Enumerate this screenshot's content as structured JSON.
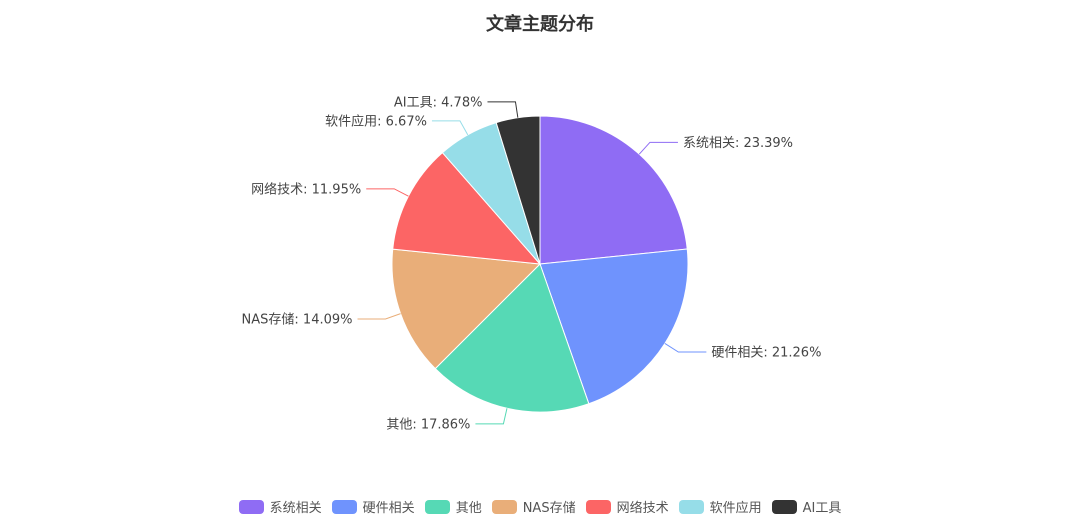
{
  "chart_data": {
    "type": "pie",
    "title": "文章主题分布",
    "categories": [
      "系统相关",
      "硬件相关",
      "其他",
      "NAS存储",
      "网络技术",
      "软件应用",
      "AI工具"
    ],
    "values": [
      23.39,
      21.26,
      17.86,
      14.09,
      11.95,
      6.67,
      4.78
    ],
    "labels": [
      "系统相关: 23.39%",
      "硬件相关: 21.26%",
      "其他: 17.86%",
      "NAS存储: 14.09%",
      "网络技术: 11.95%",
      "软件应用: 6.67%",
      "AI工具: 4.78%"
    ],
    "colors": [
      "#8f6cf4",
      "#6f93fd",
      "#56d9b5",
      "#e9ae79",
      "#fc6565",
      "#96dde8",
      "#333333"
    ],
    "legend_position": "bottom"
  }
}
